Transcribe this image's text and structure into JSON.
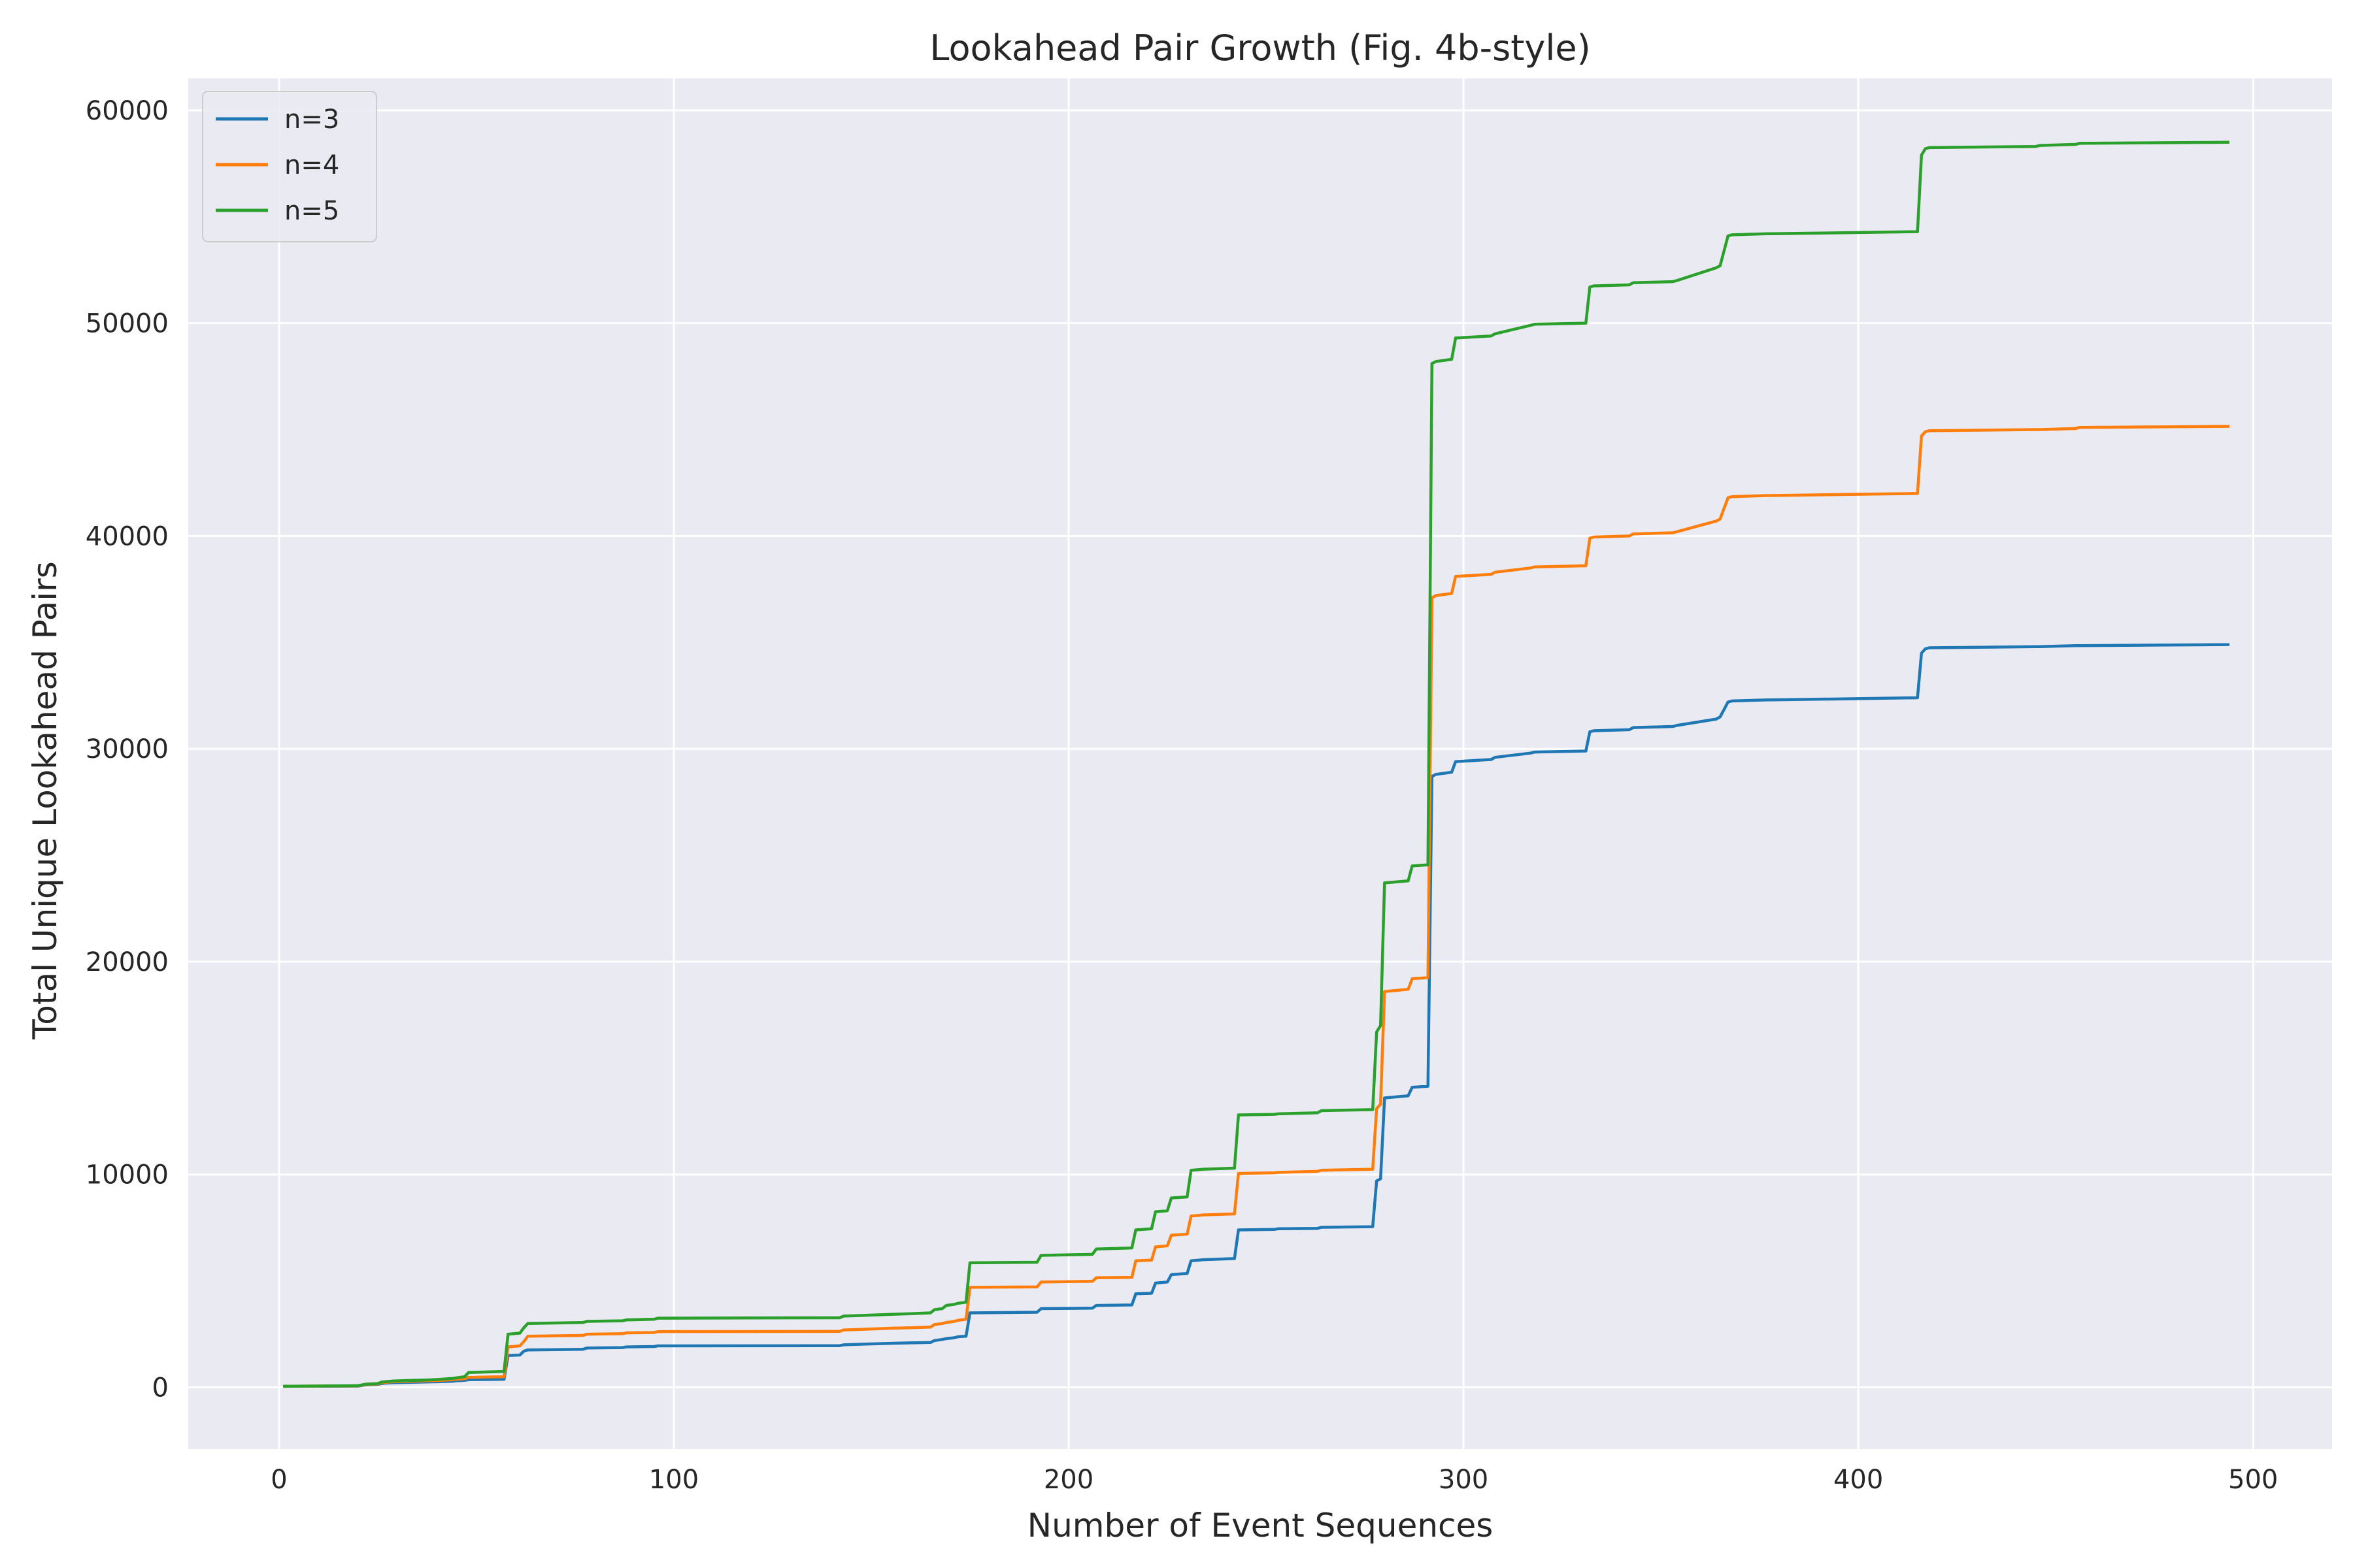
{
  "chart_data": {
    "type": "line",
    "title": "Lookahead Pair Growth (Fig. 4b-style)",
    "xlabel": "Number of Event Sequences",
    "ylabel": "Total Unique Lookahead Pairs",
    "xlim": [
      -23,
      520
    ],
    "ylim": [
      -2900,
      61500
    ],
    "xticks": [
      0,
      100,
      200,
      300,
      400,
      500
    ],
    "yticks": [
      0,
      10000,
      20000,
      30000,
      40000,
      50000,
      60000
    ],
    "grid": true,
    "legend_position": "top-left",
    "background": "#eaeaf2",
    "series": [
      {
        "name": "n=3",
        "color": "#1f77b4",
        "x": [
          1,
          20,
          22,
          25,
          26,
          27,
          29,
          34,
          38,
          41,
          44,
          45,
          47,
          48,
          57,
          58,
          61,
          62,
          63,
          77,
          78,
          87,
          88,
          95,
          96,
          142,
          143,
          148,
          155,
          160,
          165,
          166,
          168,
          169,
          171,
          172,
          174,
          175,
          192,
          193,
          206,
          207,
          216,
          217,
          221,
          222,
          225,
          226,
          230,
          231,
          233,
          234,
          242,
          243,
          252,
          253,
          263,
          264,
          277,
          278,
          279,
          280,
          286,
          287,
          291,
          292,
          293,
          297,
          298,
          307,
          308,
          317,
          318,
          331,
          332,
          333,
          342,
          343,
          353,
          354,
          364,
          365,
          367,
          368,
          377,
          378,
          415,
          416,
          417,
          418,
          445,
          446,
          455,
          456,
          494
        ],
        "y": [
          50,
          60,
          120,
          140,
          180,
          200,
          220,
          240,
          260,
          270,
          290,
          310,
          330,
          360,
          380,
          1500,
          1520,
          1700,
          1760,
          1790,
          1850,
          1870,
          1900,
          1920,
          1950,
          1960,
          2000,
          2030,
          2070,
          2090,
          2110,
          2200,
          2250,
          2290,
          2330,
          2380,
          2400,
          3500,
          3530,
          3700,
          3720,
          3850,
          3870,
          4400,
          4420,
          4900,
          4950,
          5300,
          5350,
          5950,
          5980,
          6000,
          6050,
          7400,
          7420,
          7450,
          7470,
          7520,
          7550,
          9700,
          9800,
          13600,
          13700,
          14100,
          14150,
          28700,
          28800,
          28900,
          29400,
          29500,
          29600,
          29800,
          29850,
          29900,
          30800,
          30850,
          30900,
          31000,
          31050,
          31100,
          31400,
          31500,
          32200,
          32250,
          32300,
          32300,
          32400,
          34500,
          34700,
          34750,
          34800,
          34800,
          34850,
          34850,
          34900
        ]
      },
      {
        "name": "n=4",
        "color": "#ff7f0e",
        "x": [
          1,
          20,
          22,
          25,
          26,
          27,
          29,
          34,
          38,
          41,
          44,
          45,
          47,
          48,
          57,
          58,
          61,
          62,
          63,
          77,
          78,
          87,
          88,
          95,
          96,
          142,
          143,
          148,
          155,
          160,
          165,
          166,
          168,
          169,
          171,
          172,
          174,
          175,
          192,
          193,
          206,
          207,
          216,
          217,
          221,
          222,
          225,
          226,
          230,
          231,
          233,
          234,
          242,
          243,
          252,
          253,
          263,
          264,
          277,
          278,
          279,
          280,
          286,
          287,
          291,
          292,
          293,
          297,
          298,
          307,
          308,
          317,
          318,
          331,
          332,
          333,
          342,
          343,
          353,
          354,
          364,
          365,
          367,
          368,
          377,
          378,
          415,
          416,
          417,
          418,
          445,
          446,
          455,
          456,
          494
        ],
        "y": [
          50,
          70,
          140,
          160,
          220,
          240,
          270,
          290,
          310,
          330,
          360,
          380,
          410,
          470,
          500,
          1900,
          1950,
          2150,
          2400,
          2440,
          2500,
          2520,
          2560,
          2580,
          2620,
          2630,
          2700,
          2730,
          2780,
          2800,
          2830,
          2950,
          3000,
          3050,
          3100,
          3150,
          3200,
          4700,
          4720,
          4950,
          4980,
          5150,
          5170,
          5950,
          5980,
          6600,
          6650,
          7150,
          7200,
          8050,
          8080,
          8100,
          8150,
          10050,
          10080,
          10100,
          10150,
          10200,
          10250,
          13100,
          13300,
          18600,
          18700,
          19200,
          19250,
          37100,
          37200,
          37300,
          38100,
          38200,
          38300,
          38500,
          38550,
          38600,
          39900,
          39950,
          40000,
          40100,
          40150,
          40200,
          40700,
          40800,
          41800,
          41850,
          41900,
          41900,
          42000,
          44700,
          44900,
          44950,
          45000,
          45000,
          45050,
          45100,
          45150
        ]
      },
      {
        "name": "n=5",
        "color": "#2ca02c",
        "x": [
          1,
          20,
          22,
          25,
          26,
          27,
          29,
          34,
          38,
          41,
          44,
          45,
          47,
          48,
          57,
          58,
          61,
          62,
          63,
          77,
          78,
          87,
          88,
          95,
          96,
          142,
          143,
          148,
          155,
          160,
          165,
          166,
          168,
          169,
          171,
          172,
          174,
          175,
          192,
          193,
          206,
          207,
          216,
          217,
          221,
          222,
          225,
          226,
          230,
          231,
          233,
          234,
          242,
          243,
          252,
          253,
          263,
          264,
          277,
          278,
          279,
          280,
          286,
          287,
          291,
          292,
          293,
          297,
          298,
          307,
          308,
          317,
          318,
          331,
          332,
          333,
          342,
          343,
          353,
          354,
          364,
          365,
          367,
          368,
          377,
          378,
          415,
          416,
          417,
          418,
          445,
          446,
          455,
          456,
          494
        ],
        "y": [
          50,
          80,
          150,
          180,
          250,
          270,
          300,
          330,
          350,
          380,
          420,
          450,
          500,
          700,
          750,
          2500,
          2550,
          2800,
          3000,
          3050,
          3100,
          3130,
          3170,
          3200,
          3250,
          3270,
          3350,
          3380,
          3430,
          3460,
          3500,
          3650,
          3700,
          3850,
          3900,
          3950,
          4000,
          5850,
          5880,
          6200,
          6250,
          6500,
          6550,
          7400,
          7450,
          8250,
          8300,
          8900,
          8950,
          10200,
          10230,
          10250,
          10300,
          12800,
          12830,
          12850,
          12900,
          13000,
          13050,
          16700,
          17000,
          23700,
          23800,
          24500,
          24550,
          48100,
          48200,
          48300,
          49300,
          49400,
          49500,
          49900,
          49950,
          50000,
          51700,
          51750,
          51800,
          51900,
          51950,
          52000,
          52600,
          52700,
          54100,
          54150,
          54200,
          54200,
          54300,
          57900,
          58200,
          58250,
          58300,
          58350,
          58400,
          58450,
          58500
        ]
      }
    ]
  }
}
